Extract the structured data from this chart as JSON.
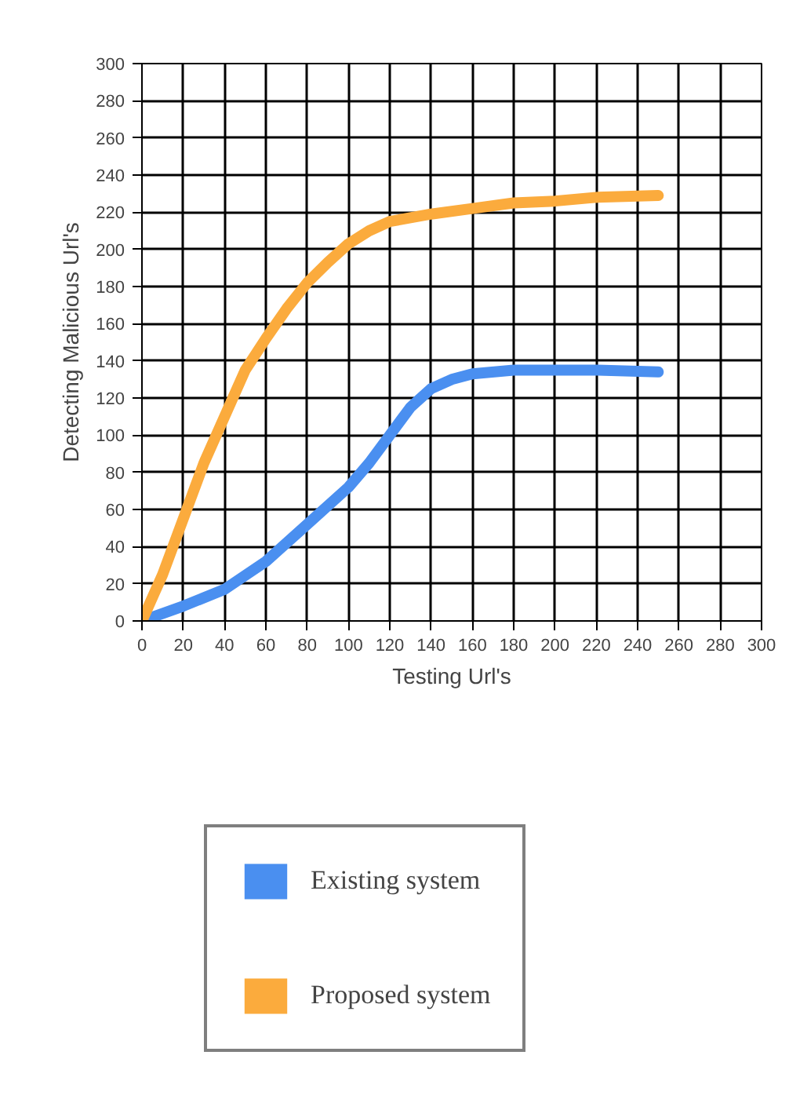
{
  "chart_data": {
    "type": "line",
    "xlabel": "Testing Url's",
    "ylabel": "Detecting Malicious Url's",
    "xlim": [
      0,
      300
    ],
    "ylim": [
      0,
      300
    ],
    "xticks": [
      0,
      20,
      40,
      60,
      80,
      100,
      120,
      140,
      160,
      180,
      200,
      220,
      240,
      260,
      280,
      300
    ],
    "yticks": [
      0,
      20,
      40,
      60,
      80,
      100,
      120,
      140,
      160,
      180,
      200,
      220,
      240,
      260,
      280,
      300
    ],
    "grid": true,
    "legend": "bottom",
    "line_style": "solid",
    "series": [
      {
        "name": "Existing system",
        "color": "#4a8ff0",
        "x": [
          0,
          20,
          40,
          60,
          80,
          100,
          110,
          120,
          130,
          140,
          150,
          160,
          180,
          200,
          220,
          250
        ],
        "values": [
          0,
          8,
          17,
          32,
          52,
          72,
          85,
          100,
          115,
          125,
          130,
          133,
          135,
          135,
          135,
          134
        ]
      },
      {
        "name": "Proposed system",
        "color": "#fbab3d",
        "x": [
          0,
          10,
          20,
          30,
          40,
          50,
          60,
          70,
          80,
          90,
          100,
          110,
          120,
          140,
          160,
          180,
          200,
          220,
          250
        ],
        "values": [
          0,
          25,
          55,
          85,
          110,
          135,
          152,
          168,
          182,
          193,
          203,
          210,
          215,
          219,
          222,
          225,
          226,
          228,
          229
        ]
      }
    ]
  }
}
